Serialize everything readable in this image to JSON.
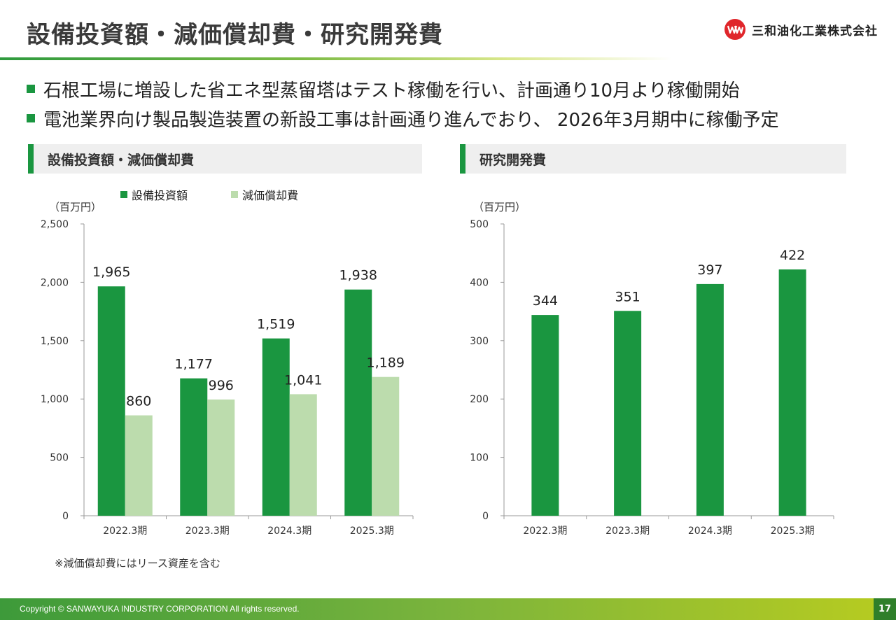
{
  "page": {
    "title": "設備投資額・減価償却費・研究開発費",
    "company": "三和油化工業株式会社",
    "bullets": [
      "石根工場に増設した省エネ型蒸留塔はテスト稼働を行い、計画通り10月より稼働開始",
      "電池業界向け製品製造装置の新設工事は計画通り進んでおり、 2026年3月期中に稼働予定"
    ],
    "note": "※減価償却費にはリース資産を含む",
    "copyright": "Copyright © SANWAYUKA INDUSTRY CORPORATION All rights reserved.",
    "page_number": "17"
  },
  "colors": {
    "dark_green": "#1a9640",
    "light_green": "#bcdcad",
    "axis": "#999999"
  },
  "chart_data": [
    {
      "type": "bar",
      "title": "設備投資額・減価償却費",
      "unit": "（百万円）",
      "categories": [
        "2022.3期",
        "2023.3期",
        "2024.3期",
        "2025.3期"
      ],
      "series": [
        {
          "name": "設備投資額",
          "values": [
            1965,
            1177,
            1519,
            1938
          ],
          "labels": [
            "1,965",
            "1,177",
            "1,519",
            "1,938"
          ],
          "color": "#1a9640"
        },
        {
          "name": "減価償却費",
          "values": [
            860,
            996,
            1041,
            1189
          ],
          "labels": [
            "860",
            "996",
            "1,041",
            "1,189"
          ],
          "color": "#bcdcad"
        }
      ],
      "yticks": [
        "0",
        "500",
        "1,000",
        "1,500",
        "2,000",
        "2,500"
      ],
      "ylim": [
        0,
        2500
      ],
      "legend": "top"
    },
    {
      "type": "bar",
      "title": "研究開発費",
      "unit": "（百万円）",
      "categories": [
        "2022.3期",
        "2023.3期",
        "2024.3期",
        "2025.3期"
      ],
      "series": [
        {
          "name": "研究開発費",
          "values": [
            344,
            351,
            397,
            422
          ],
          "labels": [
            "344",
            "351",
            "397",
            "422"
          ],
          "color": "#1a9640"
        }
      ],
      "yticks": [
        "0",
        "100",
        "200",
        "300",
        "400",
        "500"
      ],
      "ylim": [
        0,
        500
      ]
    }
  ]
}
